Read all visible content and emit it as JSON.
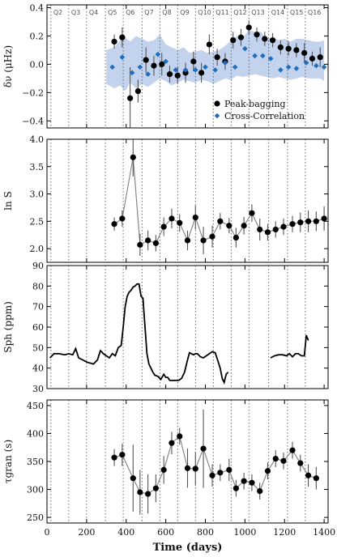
{
  "chart_data": [
    {
      "type": "scatter",
      "ylabel": "δν (μHz)",
      "ylim": [
        -0.45,
        0.42
      ],
      "yticks": [
        -0.4,
        -0.2,
        0.0,
        0.2,
        0.4
      ],
      "ytick_labels": [
        "−0.4",
        "−0.2",
        "0.0",
        "0.2",
        "0.4"
      ],
      "xlim": [
        0,
        1420
      ],
      "quarters": {
        "labels": [
          "Q2",
          "Q3",
          "Q4",
          "Q5",
          "Q6",
          "Q7",
          "Q8",
          "Q9",
          "Q10",
          "Q11",
          "Q12",
          "Q13",
          "Q14",
          "Q15",
          "Q16"
        ],
        "boundaries": [
          20,
          110,
          200,
          295,
          385,
          480,
          570,
          660,
          750,
          840,
          930,
          1020,
          1120,
          1215,
          1305
        ]
      },
      "band": {
        "x": [
          300,
          340,
          370,
          395,
          420,
          450,
          480,
          510,
          540,
          570,
          600,
          630,
          660,
          690,
          720,
          750,
          780,
          810,
          840,
          870,
          900,
          930,
          960,
          990,
          1020,
          1050,
          1080,
          1110,
          1140,
          1170,
          1200,
          1230,
          1260,
          1290,
          1320,
          1350,
          1380,
          1400
        ],
        "lower": [
          -0.14,
          -0.17,
          -0.15,
          -0.19,
          -0.13,
          -0.17,
          -0.14,
          -0.16,
          -0.13,
          -0.1,
          -0.12,
          -0.15,
          -0.13,
          -0.11,
          -0.12,
          -0.13,
          -0.11,
          -0.12,
          -0.14,
          -0.12,
          -0.1,
          -0.11,
          -0.08,
          -0.09,
          -0.08,
          -0.07,
          -0.08,
          -0.09,
          -0.1,
          -0.09,
          -0.1,
          -0.11,
          -0.1,
          -0.09,
          -0.1,
          -0.1,
          -0.1,
          -0.12
        ],
        "upper": [
          0.1,
          0.12,
          0.17,
          0.19,
          0.16,
          0.2,
          0.18,
          0.16,
          0.17,
          0.21,
          0.14,
          0.12,
          0.1,
          0.12,
          0.08,
          0.09,
          0.1,
          0.08,
          0.09,
          0.1,
          0.13,
          0.17,
          0.2,
          0.19,
          0.24,
          0.23,
          0.23,
          0.18,
          0.19,
          0.17,
          0.18,
          0.16,
          0.18,
          0.18,
          0.17,
          0.16,
          0.16,
          0.17
        ],
        "color": "#b8cbea"
      },
      "series": [
        {
          "name": "Peak-bagging",
          "color": "#000000",
          "marker": "circle",
          "x": [
            340,
            380,
            420,
            460,
            500,
            540,
            580,
            620,
            660,
            700,
            740,
            780,
            820,
            860,
            900,
            940,
            980,
            1020,
            1060,
            1100,
            1140,
            1180,
            1220,
            1260,
            1300,
            1340,
            1380
          ],
          "y": [
            0.16,
            0.19,
            -0.24,
            -0.19,
            0.03,
            -0.01,
            0.0,
            -0.07,
            -0.08,
            -0.06,
            0.02,
            -0.06,
            0.14,
            0.05,
            0.02,
            0.17,
            0.19,
            0.26,
            0.21,
            0.18,
            0.17,
            0.12,
            0.11,
            0.1,
            0.08,
            0.04,
            0.05
          ],
          "yerr": [
            0.05,
            0.07,
            0.22,
            0.08,
            0.09,
            0.07,
            0.08,
            0.06,
            0.06,
            0.07,
            0.07,
            0.07,
            0.07,
            0.06,
            0.06,
            0.06,
            0.06,
            0.05,
            0.05,
            0.05,
            0.05,
            0.05,
            0.05,
            0.05,
            0.07,
            0.05,
            0.07
          ]
        },
        {
          "name": "Cross-Correlation",
          "color": "#1f6ebd",
          "marker": "diamond",
          "x": [
            330,
            380,
            430,
            470,
            510,
            560,
            600,
            650,
            700,
            750,
            800,
            850,
            900,
            950,
            1000,
            1050,
            1090,
            1130,
            1180,
            1220,
            1260,
            1310,
            1360,
            1400
          ],
          "y": [
            -0.02,
            0.05,
            -0.06,
            -0.02,
            -0.07,
            0.07,
            0.02,
            -0.04,
            -0.04,
            -0.04,
            -0.02,
            -0.04,
            0.01,
            -0.02,
            0.11,
            0.06,
            0.06,
            0.04,
            -0.04,
            -0.02,
            -0.03,
            0.01,
            -0.01,
            -0.02
          ]
        }
      ],
      "legend": {
        "position": "bottom-right",
        "entries": [
          "Peak-bagging",
          "Cross-Correlation"
        ]
      }
    },
    {
      "type": "line",
      "ylabel": "ln S",
      "ylim": [
        1.75,
        4.0
      ],
      "yticks": [
        2.0,
        2.5,
        3.0,
        3.5,
        4.0
      ],
      "ytick_labels": [
        "2.0",
        "2.5",
        "3.0",
        "3.5",
        "4.0"
      ],
      "xlim": [
        0,
        1420
      ],
      "series": [
        {
          "name": "",
          "color": "#000000",
          "line_color": "#888888",
          "marker": "circle",
          "x": [
            340,
            380,
            435,
            470,
            510,
            550,
            590,
            630,
            670,
            710,
            750,
            790,
            835,
            875,
            920,
            955,
            995,
            1035,
            1075,
            1115,
            1155,
            1195,
            1240,
            1280,
            1320,
            1360,
            1400
          ],
          "y": [
            2.45,
            2.55,
            3.67,
            2.07,
            2.15,
            2.1,
            2.4,
            2.55,
            2.47,
            2.15,
            2.57,
            2.15,
            2.22,
            2.5,
            2.42,
            2.2,
            2.42,
            2.65,
            2.35,
            2.3,
            2.35,
            2.4,
            2.45,
            2.48,
            2.5,
            2.5,
            2.55
          ],
          "yerr": [
            0.12,
            0.15,
            0.35,
            0.2,
            0.18,
            0.15,
            0.17,
            0.18,
            0.16,
            0.18,
            0.22,
            0.25,
            0.2,
            0.15,
            0.14,
            0.18,
            0.16,
            0.16,
            0.2,
            0.15,
            0.15,
            0.15,
            0.15,
            0.18,
            0.2,
            0.18,
            0.22
          ]
        }
      ]
    },
    {
      "type": "line",
      "ylabel": "Sph (ppm)",
      "ylim": [
        30,
        90
      ],
      "yticks": [
        30,
        40,
        50,
        60,
        70,
        80,
        90
      ],
      "ytick_labels": [
        "30",
        "40",
        "50",
        "60",
        "70",
        "80",
        "90"
      ],
      "xlim": [
        0,
        1420
      ],
      "series": [
        {
          "name": "",
          "color": "#000000",
          "segments": [
            {
              "x": [
                15,
                35,
                60,
                90,
                110,
                130,
                145,
                160,
                180,
                200,
                215,
                235,
                255,
                270,
                285,
                300,
                315,
                330,
                345,
                360,
                375,
                385,
                395,
                405,
                415,
                425,
                435,
                445,
                455,
                465,
                475,
                485,
                495,
                505,
                515,
                525,
                535,
                545,
                560,
                575,
                590,
                600,
                610,
                620,
                635,
                650,
                665,
                680,
                695,
                710,
                720,
                730,
                740,
                750,
                760,
                775,
                790,
                805,
                820,
                835,
                850,
                865,
                875,
                885,
                895,
                905,
                915
              ],
              "y": [
                45,
                47,
                47,
                46.5,
                47,
                46.5,
                49.5,
                45,
                44,
                43,
                42.5,
                42,
                44,
                48.5,
                47,
                46,
                45,
                47,
                46,
                50,
                51,
                60,
                70,
                75,
                77,
                78,
                79.5,
                80,
                81,
                81,
                75,
                74,
                60,
                47,
                42,
                40,
                38,
                36.5,
                36,
                34.5,
                37,
                35.5,
                35.5,
                34,
                34,
                34,
                34,
                35,
                38,
                44,
                47.5,
                47,
                46.5,
                47,
                47,
                45.5,
                45,
                46,
                47,
                48,
                47.5,
                43,
                40,
                35,
                33,
                37,
                38
              ]
            },
            {
              "x": [
                1130,
                1150,
                1170,
                1190,
                1210,
                1225,
                1240,
                1255,
                1270,
                1285,
                1300,
                1310,
                1320
              ],
              "y": [
                45,
                46,
                46.5,
                46.5,
                46,
                47,
                45.5,
                47,
                47,
                46,
                46,
                56,
                53.5
              ]
            }
          ]
        }
      ]
    },
    {
      "type": "scatter",
      "ylabel": "τgran (s)",
      "xlabel": "Time (days)",
      "ylim": [
        240,
        460
      ],
      "yticks": [
        250,
        300,
        350,
        400,
        450
      ],
      "ytick_labels": [
        "250",
        "300",
        "350",
        "400",
        "450"
      ],
      "xlim": [
        0,
        1420
      ],
      "xticks": [
        0,
        200,
        400,
        600,
        800,
        1000,
        1200,
        1400
      ],
      "xtick_labels": [
        "0",
        "200",
        "400",
        "600",
        "800",
        "1000",
        "1200",
        "1400"
      ],
      "series": [
        {
          "name": "",
          "color": "#000000",
          "line_color": "#888888",
          "marker": "circle",
          "x": [
            340,
            380,
            435,
            470,
            510,
            550,
            590,
            630,
            670,
            710,
            750,
            790,
            835,
            875,
            920,
            955,
            995,
            1035,
            1075,
            1115,
            1155,
            1195,
            1240,
            1280,
            1320,
            1360
          ],
          "y": [
            357,
            362,
            320,
            295,
            292,
            302,
            335,
            383,
            395,
            338,
            337,
            373,
            325,
            330,
            335,
            302,
            315,
            312,
            297,
            333,
            355,
            351,
            370,
            347,
            325,
            320
          ],
          "yerr": [
            15,
            20,
            60,
            40,
            35,
            25,
            25,
            20,
            15,
            35,
            30,
            70,
            20,
            15,
            20,
            15,
            15,
            15,
            15,
            15,
            15,
            15,
            15,
            15,
            20,
            20
          ]
        }
      ]
    }
  ]
}
